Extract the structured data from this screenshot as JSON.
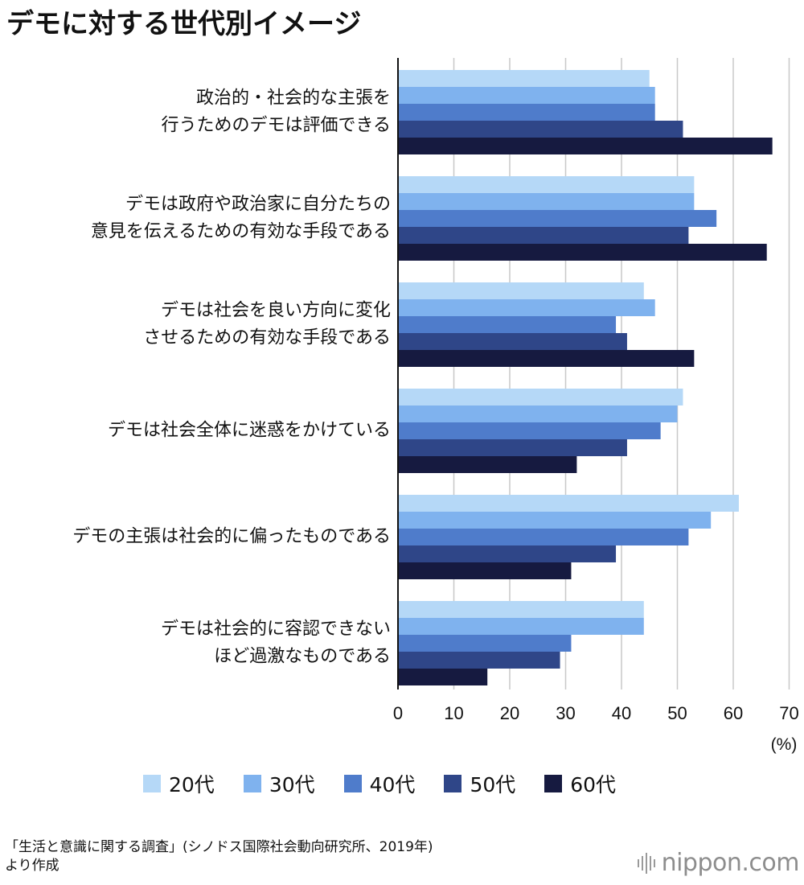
{
  "chart_data": {
    "type": "bar",
    "orientation": "horizontal",
    "title": "デモに対する世代別イメージ",
    "unit_label": "(%)",
    "categories": [
      [
        "政治的・社会的な主張を",
        "行うためのデモは評価できる"
      ],
      [
        "デモは政府や政治家に自分たちの",
        "意見を伝えるための有効な手段である"
      ],
      [
        "デモは社会を良い方向に変化",
        "させるための有効な手段である"
      ],
      [
        "デモは社会全体に迷惑をかけている"
      ],
      [
        "デモの主張は社会的に偏ったものである"
      ],
      [
        "デモは社会的に容認できない",
        "ほど過激なものである"
      ]
    ],
    "series": [
      {
        "name": "20代",
        "color": "#b5d8f7",
        "values": [
          45,
          53,
          44,
          51,
          61,
          44
        ]
      },
      {
        "name": "30代",
        "color": "#7fb2ee",
        "values": [
          46,
          53,
          46,
          50,
          56,
          44
        ]
      },
      {
        "name": "40代",
        "color": "#4f7ccb",
        "values": [
          46,
          57,
          39,
          47,
          52,
          31
        ]
      },
      {
        "name": "50代",
        "color": "#2f4688",
        "values": [
          51,
          52,
          41,
          41,
          39,
          29
        ]
      },
      {
        "name": "60代",
        "color": "#161a40",
        "values": [
          67,
          66,
          53,
          32,
          31,
          16
        ]
      }
    ],
    "xlim": [
      0,
      70
    ],
    "xticks": [
      0,
      10,
      20,
      30,
      40,
      50,
      60,
      70
    ],
    "grid": true,
    "legend_position": "bottom"
  },
  "source": {
    "line1": "「生活と意識に関する調査」(シノドス国際社会動向研究所、2019年)",
    "line2": "より作成"
  },
  "brand": {
    "text": "nippon.com",
    "color": "#8d8d8d"
  }
}
